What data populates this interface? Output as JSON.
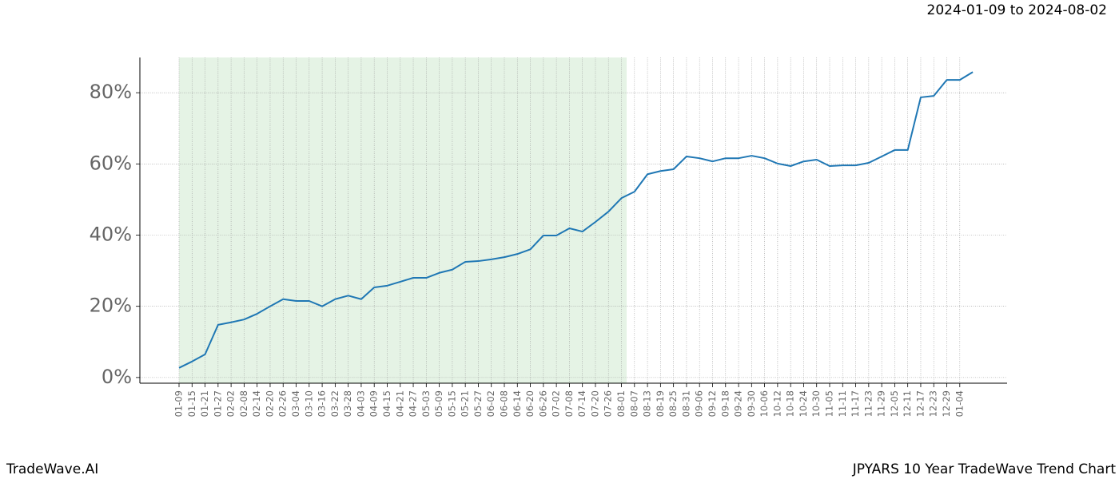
{
  "chart_data": {
    "type": "line",
    "subtitle": "2024-01-09 to 2024-08-02",
    "footer_left": "TradeWave.AI",
    "footer_right": "JPYARS 10 Year TradeWave Trend Chart",
    "categories": [
      "01-09",
      "01-15",
      "01-21",
      "01-27",
      "02-02",
      "02-08",
      "02-14",
      "02-20",
      "02-26",
      "03-04",
      "03-10",
      "03-16",
      "03-22",
      "03-28",
      "04-03",
      "04-09",
      "04-15",
      "04-21",
      "04-27",
      "05-03",
      "05-09",
      "05-15",
      "05-21",
      "05-27",
      "06-02",
      "06-08",
      "06-14",
      "06-20",
      "06-26",
      "07-02",
      "07-08",
      "07-14",
      "07-20",
      "07-26",
      "08-01",
      "08-07",
      "08-13",
      "08-19",
      "08-25",
      "08-31",
      "09-06",
      "09-12",
      "09-18",
      "09-24",
      "09-30",
      "10-06",
      "10-12",
      "10-18",
      "10-24",
      "10-30",
      "11-05",
      "11-11",
      "11-17",
      "11-23",
      "11-29",
      "12-05",
      "12-11",
      "12-17",
      "12-23",
      "12-29",
      "01-04",
      null
    ],
    "series": [
      {
        "color": "#1f77b4",
        "values": [
          2.7,
          4.5,
          6.5,
          14.8,
          15.5,
          16.3,
          17.9,
          20,
          22,
          21.5,
          21.5,
          20,
          22,
          23,
          22,
          25.3,
          25.8,
          26.9,
          28,
          28,
          29.4,
          30.3,
          32.5,
          32.7,
          33.2,
          33.8,
          34.7,
          36,
          39.9,
          39.9,
          41.9,
          41,
          43.7,
          46.6,
          50.4,
          52.2,
          57.1,
          58,
          58.5,
          62.1,
          61.6,
          60.7,
          61.6,
          61.6,
          62.3,
          61.6,
          60.1,
          59.4,
          60.7,
          61.2,
          59.4,
          59.6,
          59.6,
          60.3,
          62.1,
          63.9,
          63.9,
          78.7,
          79.1,
          83.6,
          83.6,
          85.8
        ]
      }
    ],
    "ylim": [
      -1.6,
      89.9
    ],
    "yticks": [
      {
        "value": 0,
        "label": "0%"
      },
      {
        "value": 20,
        "label": "20%"
      },
      {
        "value": 40,
        "label": "40%"
      },
      {
        "value": 60,
        "label": "60%"
      },
      {
        "value": 80,
        "label": "80%"
      }
    ],
    "grid": true,
    "shade_color": "#2ca02c"
  }
}
